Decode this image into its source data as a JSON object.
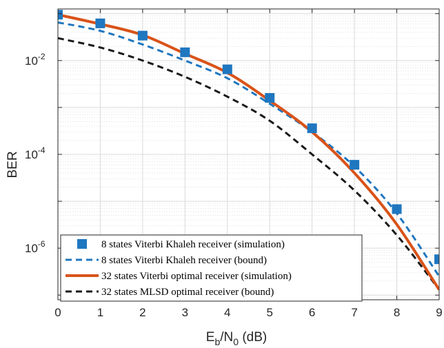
{
  "chart_data": {
    "type": "line",
    "xlabel_main": "E",
    "xlabel_sub_b": "b",
    "xlabel_slash": "/N",
    "xlabel_sub_0": "0",
    "xlabel_unit": " (dB)",
    "ylabel": "BER",
    "xlim": [
      0,
      9
    ],
    "ylim_log10": [
      -7.1,
      -0.9
    ],
    "y_scale": "log",
    "grid": true,
    "legend_position": "bottom-left",
    "x_ticks": [
      "0",
      "1",
      "2",
      "3",
      "4",
      "5",
      "6",
      "7",
      "8",
      "9"
    ],
    "y_ticks": [
      {
        "base": "10",
        "exp": "-2",
        "value": 0.01
      },
      {
        "base": "10",
        "exp": "-4",
        "value": 0.0001
      },
      {
        "base": "10",
        "exp": "-6",
        "value": 1e-06
      }
    ],
    "series": [
      {
        "name": "8 states Viterbi Khaleh receiver (simulation)",
        "style": "square-markers",
        "color": "#1f77c0",
        "x": [
          0,
          1,
          2,
          3,
          4,
          5,
          6,
          7,
          8,
          9
        ],
        "y": [
          0.095,
          0.062,
          0.034,
          0.015,
          0.0065,
          0.0016,
          0.00036,
          6e-05,
          6.8e-06,
          5.8e-07
        ]
      },
      {
        "name": "8 states Viterbi Khaleh receiver (bound)",
        "style": "dashed",
        "color": "#1f77c0",
        "x": [
          0,
          1,
          2,
          3,
          4,
          5,
          6,
          7,
          8,
          9
        ],
        "y": [
          0.065,
          0.043,
          0.022,
          0.01,
          0.0042,
          0.0012,
          0.0003,
          5.5e-05,
          5.5e-06,
          2.5e-07
        ]
      },
      {
        "name": "32 states Viterbi optimal receiver (simulation)",
        "style": "solid",
        "color": "#d95319",
        "x": [
          0,
          1,
          2,
          3,
          4,
          5,
          6,
          7,
          8,
          9
        ],
        "y": [
          0.095,
          0.06,
          0.035,
          0.014,
          0.0055,
          0.0014,
          0.0003,
          4e-05,
          3.2e-06,
          1.3e-07
        ]
      },
      {
        "name": "32 states MLSD optimal receiver (bound)",
        "style": "dashed",
        "color": "#1a1a1a",
        "x": [
          0,
          1,
          2,
          3,
          4,
          5,
          6,
          7,
          8,
          9
        ],
        "y": [
          0.03,
          0.019,
          0.01,
          0.0045,
          0.0017,
          0.00052,
          0.0001,
          1.7e-05,
          1.9e-06,
          1.3e-07
        ]
      }
    ]
  }
}
